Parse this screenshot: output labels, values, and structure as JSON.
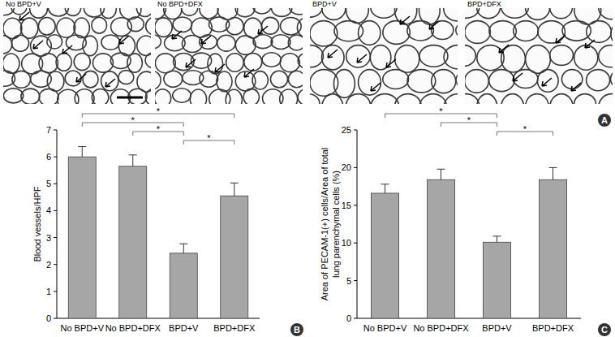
{
  "panel_a": {
    "letter": "A",
    "labels": [
      "No BPD+V",
      "No BPD+DFX",
      "BPD+V",
      "BPD+DFX"
    ]
  },
  "chart_data": [
    {
      "type": "bar",
      "letter": "B",
      "categories": [
        "No BPD+V",
        "No BPD+DFX",
        "BPD+V",
        "BPD+DFX"
      ],
      "values": [
        6.0,
        5.65,
        2.42,
        4.55
      ],
      "errors": [
        0.38,
        0.42,
        0.35,
        0.48
      ],
      "color": "#a6a6a6",
      "ylabel": [
        "Blood vessels/HPF"
      ],
      "ylim": [
        0,
        7
      ],
      "yticks": [
        0,
        1,
        2,
        3,
        4,
        5,
        6,
        7
      ],
      "significance": [
        {
          "from": "No BPD+V",
          "to": "BPD+DFX",
          "label": "*"
        },
        {
          "from": "No BPD+V",
          "to": "BPD+V",
          "label": "*"
        },
        {
          "from": "No BPD+DFX",
          "to": "BPD+V",
          "label": "*"
        },
        {
          "from": "BPD+V",
          "to": "BPD+DFX",
          "label": "*"
        }
      ]
    },
    {
      "type": "bar",
      "letter": "C",
      "categories": [
        "No BPD+V",
        "No BPD+DFX",
        "BPD+V",
        "BPD+DFX"
      ],
      "values": [
        16.6,
        18.4,
        10.1,
        18.4
      ],
      "errors": [
        1.2,
        1.4,
        0.8,
        1.6
      ],
      "color": "#a6a6a6",
      "ylabel": [
        "Area of PECAM-1(+) cells/Area of total",
        "lung parenchymal cells (%)"
      ],
      "ylim": [
        0,
        25
      ],
      "yticks": [
        0,
        5,
        10,
        15,
        20,
        25
      ],
      "significance": [
        {
          "from": "No BPD+V",
          "to": "BPD+V",
          "label": "*"
        },
        {
          "from": "No BPD+DFX",
          "to": "BPD+V",
          "label": "*"
        },
        {
          "from": "BPD+V",
          "to": "BPD+DFX",
          "label": "*"
        }
      ]
    }
  ]
}
